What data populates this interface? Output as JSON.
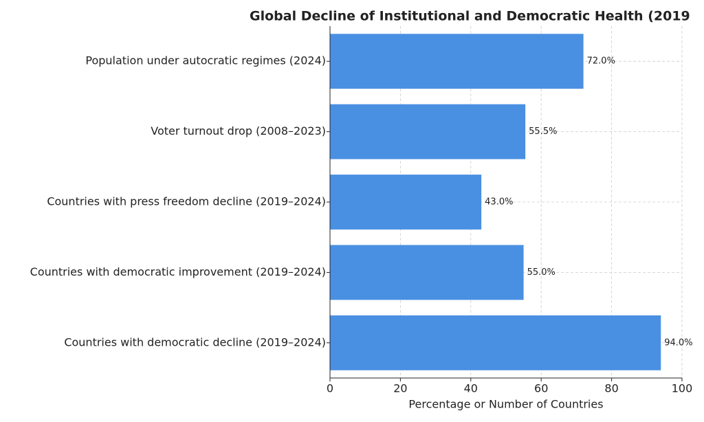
{
  "chart_data": {
    "type": "hbar",
    "title": "Global Decline of Institutional and Democratic Health (2019",
    "xlabel": "Percentage or Number of Countries",
    "categories": [
      "Population under autocratic regimes (2024)",
      "Voter turnout drop (2008–2023)",
      "Countries with press freedom decline (2019–2024)",
      "Countries with democratic improvement (2019–2024)",
      "Countries with democratic decline (2019–2024)"
    ],
    "values": [
      72.0,
      55.5,
      43.0,
      55.0,
      94.0
    ],
    "value_labels": [
      "72.0%",
      "55.5%",
      "43.0%",
      "55.0%",
      "94.0%"
    ],
    "color": "#4a90e2",
    "xlim": [
      0,
      100
    ],
    "xticks": [
      0,
      20,
      40,
      60,
      80,
      100
    ],
    "grid": true
  }
}
